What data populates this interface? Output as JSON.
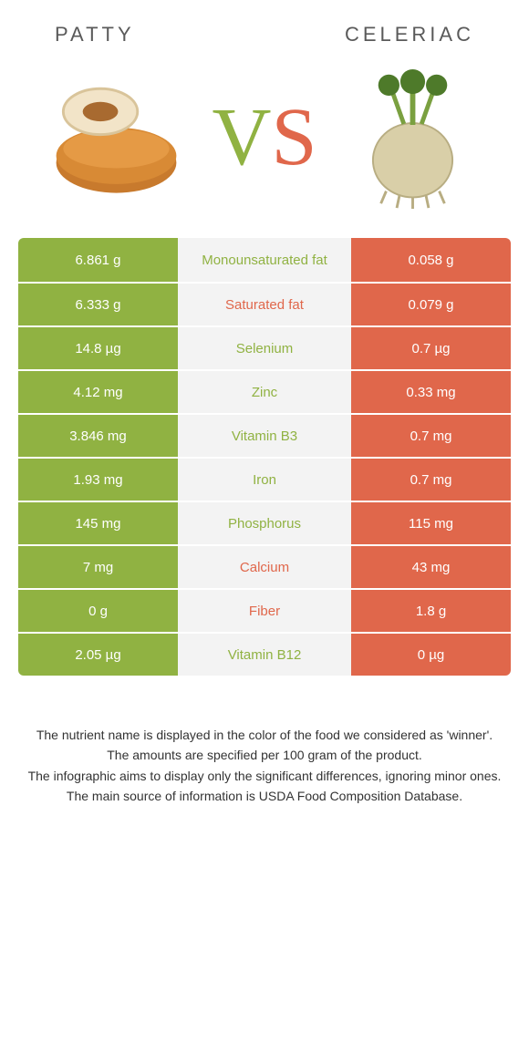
{
  "header": {
    "left_title": "Patty",
    "right_title": "Celeriac"
  },
  "vs": {
    "v": "V",
    "s": "S"
  },
  "colors": {
    "left_bg": "#90b242",
    "right_bg": "#e0674b",
    "mid_bg": "#f3f3f3",
    "left_text": "#90b242",
    "right_text": "#e0674b"
  },
  "table": {
    "rows": [
      {
        "left": "6.861 g",
        "label": "Monounsaturated fat",
        "right": "0.058 g",
        "winner": "left"
      },
      {
        "left": "6.333 g",
        "label": "Saturated fat",
        "right": "0.079 g",
        "winner": "right"
      },
      {
        "left": "14.8 µg",
        "label": "Selenium",
        "right": "0.7 µg",
        "winner": "left"
      },
      {
        "left": "4.12 mg",
        "label": "Zinc",
        "right": "0.33 mg",
        "winner": "left"
      },
      {
        "left": "3.846 mg",
        "label": "Vitamin B3",
        "right": "0.7 mg",
        "winner": "left"
      },
      {
        "left": "1.93 mg",
        "label": "Iron",
        "right": "0.7 mg",
        "winner": "left"
      },
      {
        "left": "145 mg",
        "label": "Phosphorus",
        "right": "115 mg",
        "winner": "left"
      },
      {
        "left": "7 mg",
        "label": "Calcium",
        "right": "43 mg",
        "winner": "right"
      },
      {
        "left": "0 g",
        "label": "Fiber",
        "right": "1.8 g",
        "winner": "right"
      },
      {
        "left": "2.05 µg",
        "label": "Vitamin B12",
        "right": "0 µg",
        "winner": "left"
      }
    ]
  },
  "footer": {
    "lines": [
      "The nutrient name is displayed in the color of the food we considered as 'winner'.",
      "The amounts are specified per 100 gram of the product.",
      "The infographic aims to display only the significant differences, ignoring minor ones.",
      "The main source of information is USDA Food Composition Database."
    ]
  }
}
